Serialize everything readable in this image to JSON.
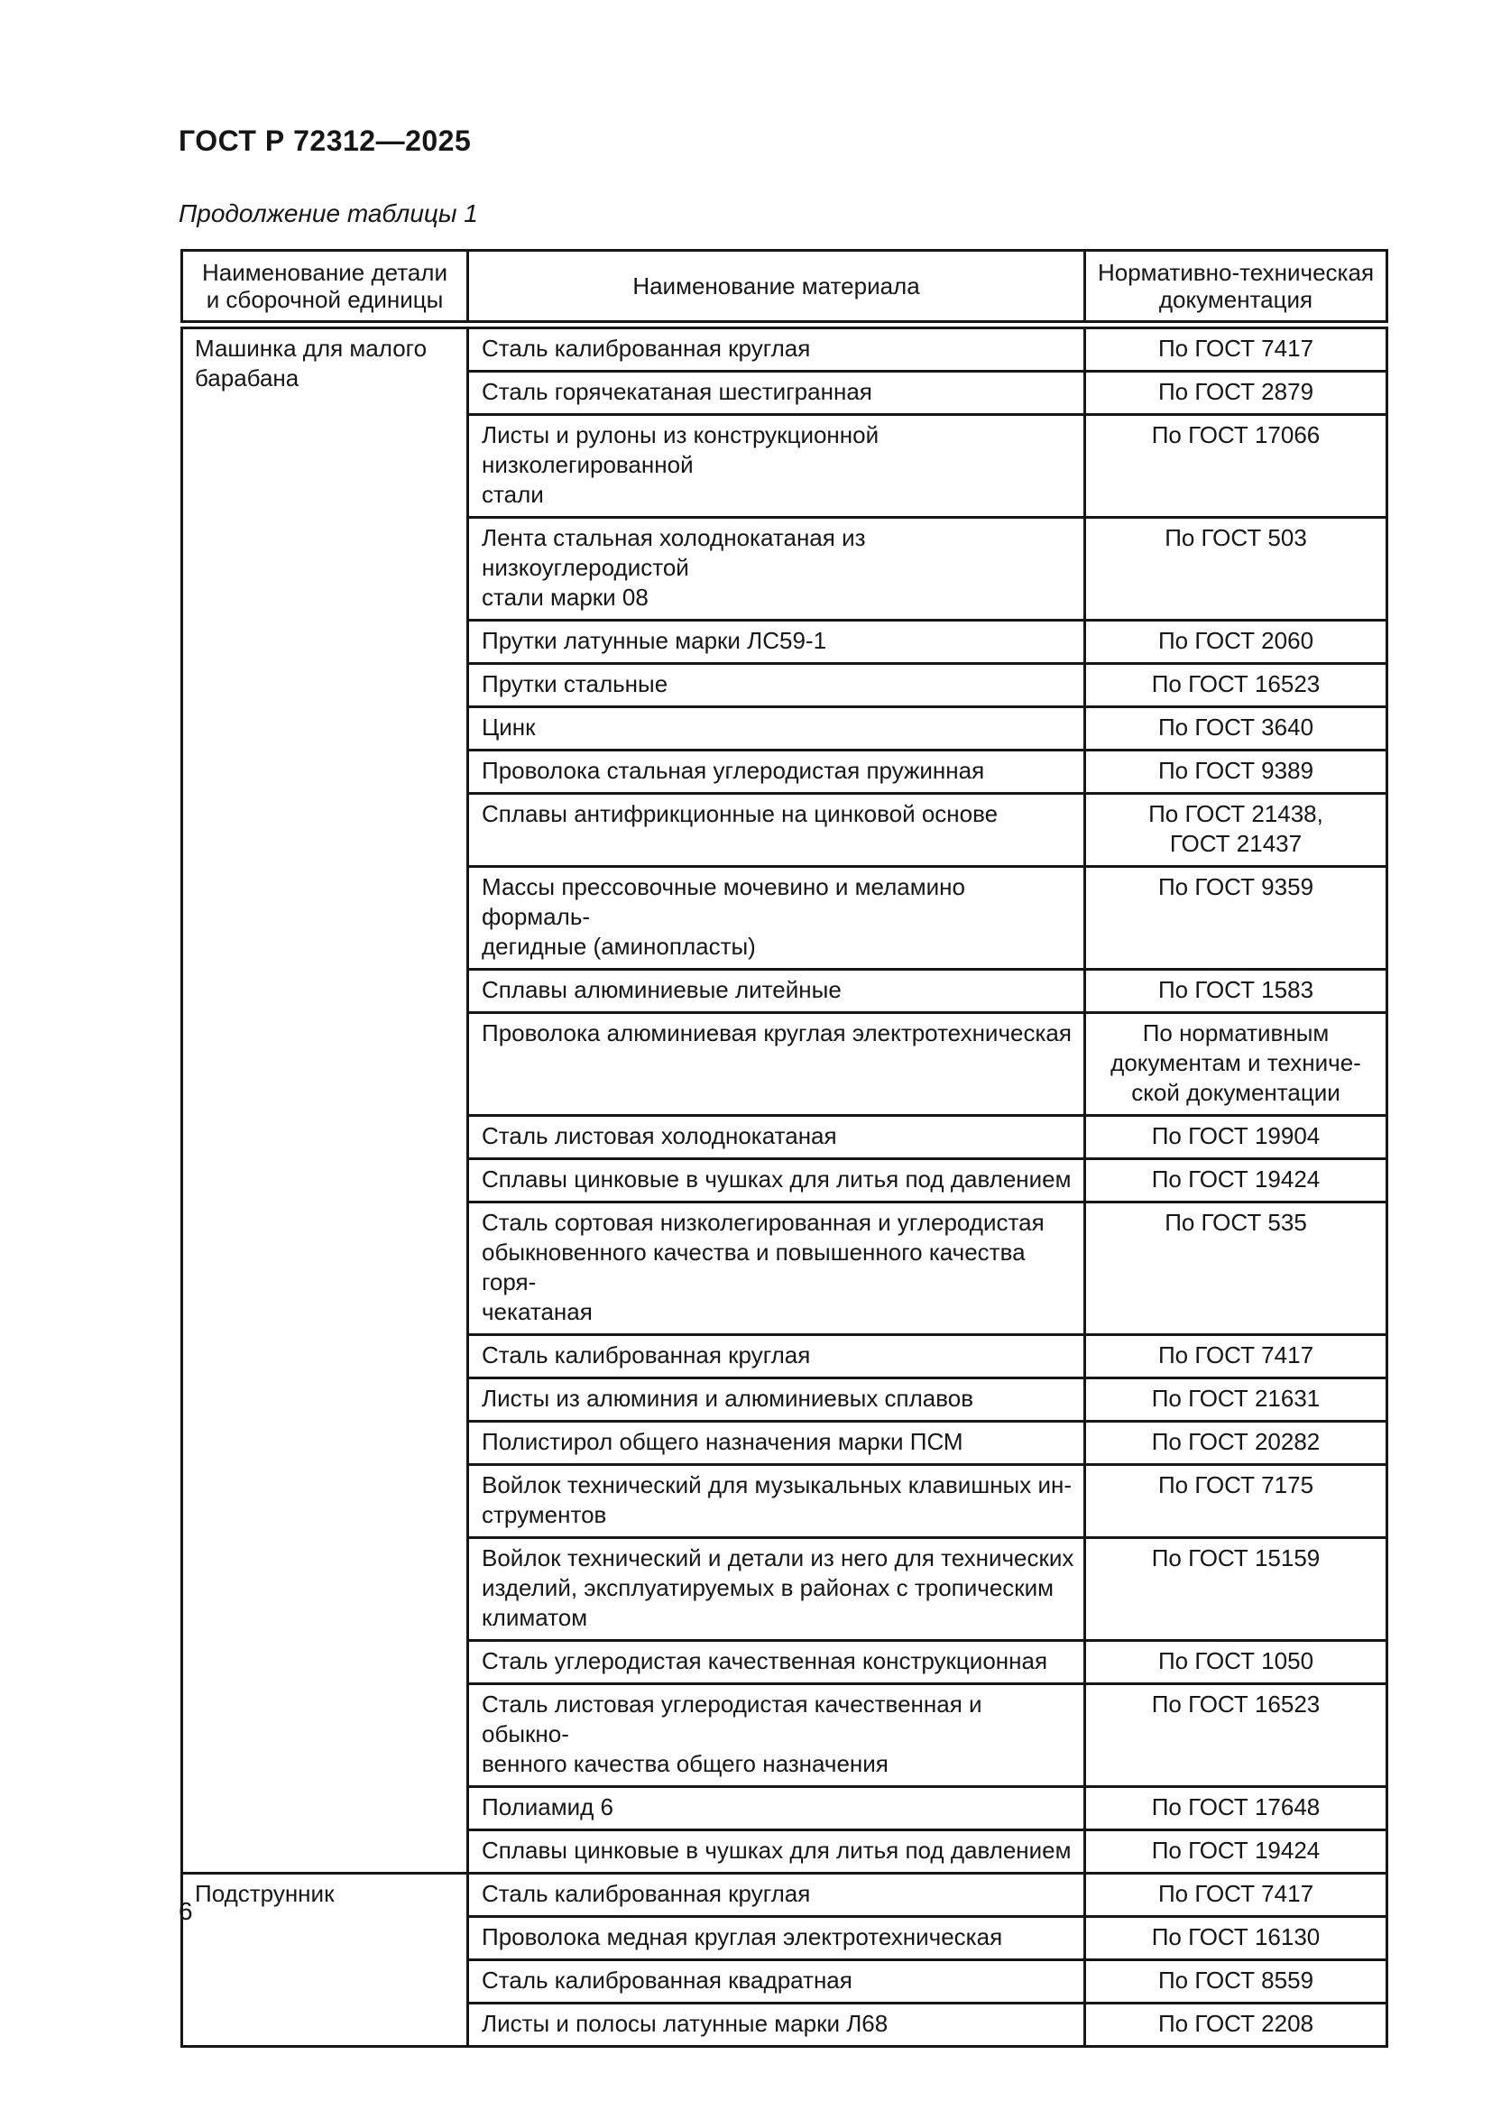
{
  "page": {
    "standard_code": "ГОСТ Р 72312—2025",
    "table_caption": "Продолжение таблицы 1",
    "page_number": "6"
  },
  "table": {
    "columns": [
      {
        "label": "Наименование детали\nи сборочной единицы"
      },
      {
        "label": "Наименование материала"
      },
      {
        "label": "Нормативно-техническая\nдокументация"
      }
    ],
    "groups": [
      {
        "part": "Машинка для малого\nбарабана",
        "rows": [
          {
            "material": "Сталь калиброванная круглая",
            "doc": "По ГОСТ 7417"
          },
          {
            "material": "Сталь горячекатаная шестигранная",
            "doc": "По ГОСТ 2879"
          },
          {
            "material": "Листы и рулоны из конструкционной низколегированной\nстали",
            "doc": "По ГОСТ 17066"
          },
          {
            "material": "Лента стальная холоднокатаная из низкоуглеродистой\nстали марки 08",
            "doc": "По ГОСТ 503"
          },
          {
            "material": "Прутки латунные марки ЛС59-1",
            "doc": "По ГОСТ 2060"
          },
          {
            "material": "Прутки стальные",
            "doc": "По ГОСТ 16523"
          },
          {
            "material": "Цинк",
            "doc": "По ГОСТ 3640"
          },
          {
            "material": "Проволока стальная углеродистая пружинная",
            "doc": "По ГОСТ 9389"
          },
          {
            "material": "Сплавы антифрикционные на цинковой основе",
            "doc": "По ГОСТ 21438,\nГОСТ 21437"
          },
          {
            "material": "Массы прессовочные мочевино и меламино формаль-\nдегидные (аминопласты)",
            "doc": "По ГОСТ 9359"
          },
          {
            "material": "Сплавы алюминиевые литейные",
            "doc": "По ГОСТ 1583"
          },
          {
            "material": "Проволока алюминиевая круглая электротехническая",
            "doc": "По нормативным\nдокументам и техниче-\nской документации"
          },
          {
            "material": "Сталь листовая холоднокатаная",
            "doc": "По ГОСТ 19904"
          },
          {
            "material": "Сплавы цинковые в чушках для литья под давлением",
            "doc": "По ГОСТ 19424"
          },
          {
            "material": "Сталь сортовая низколегированная и углеродистая\nобыкновенного качества и повышенного качества горя-\nчекатаная",
            "doc": "По ГОСТ 535"
          },
          {
            "material": "Сталь калиброванная круглая",
            "doc": "По ГОСТ 7417"
          },
          {
            "material": "Листы из алюминия и алюминиевых сплавов",
            "doc": "По ГОСТ 21631"
          },
          {
            "material": "Полистирол общего назначения марки ПСМ",
            "doc": "По ГОСТ 20282"
          },
          {
            "material": "Войлок технический для музыкальных клавишных ин-\nструментов",
            "doc": "По ГОСТ 7175"
          },
          {
            "material": "Войлок технический и детали из него для технических\nизделий, эксплуатируемых в районах с тропическим\nклиматом",
            "doc": "По ГОСТ 15159"
          },
          {
            "material": "Сталь углеродистая качественная конструкционная",
            "doc": "По ГОСТ 1050"
          },
          {
            "material": "Сталь листовая углеродистая качественная и обыкно-\nвенного качества общего назначения",
            "doc": "По ГОСТ 16523"
          },
          {
            "material": "Полиамид 6",
            "doc": "По ГОСТ 17648"
          },
          {
            "material": "Сплавы цинковые в чушках для литья под давлением",
            "doc": "По ГОСТ 19424"
          }
        ]
      },
      {
        "part": "Подструнник",
        "rows": [
          {
            "material": "Сталь калиброванная круглая",
            "doc": "По ГОСТ 7417"
          },
          {
            "material": "Проволока медная круглая электротехническая",
            "doc": "По ГОСТ 16130"
          },
          {
            "material": "Сталь калиброванная квадратная",
            "doc": "По ГОСТ 8559"
          },
          {
            "material": "Листы и полосы латунные марки Л68",
            "doc": "По ГОСТ 2208"
          }
        ]
      }
    ]
  }
}
